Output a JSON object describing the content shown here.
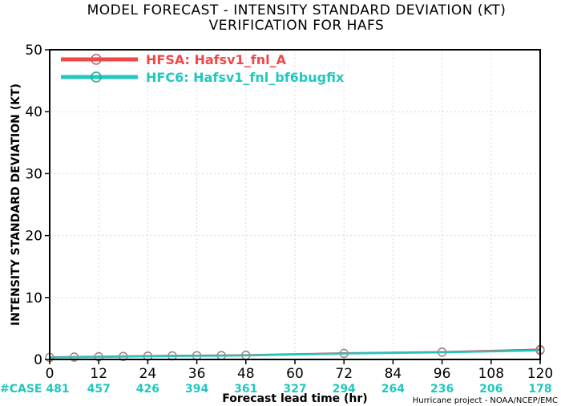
{
  "chart_data": {
    "type": "line",
    "title_line1": "MODEL FORECAST - INTENSITY STANDARD DEVIATION (KT)",
    "title_line2": "VERIFICATION FOR HAFS",
    "xlabel": "Forecast lead time (hr)",
    "ylabel": "INTENSITY STANDARD DEVIATION (KT)",
    "xlim": [
      0,
      120
    ],
    "ylim": [
      0,
      50
    ],
    "x_ticks": [
      0,
      12,
      24,
      36,
      48,
      60,
      72,
      84,
      96,
      108,
      120
    ],
    "y_ticks": [
      0,
      10,
      20,
      30,
      40,
      50
    ],
    "grid": true,
    "legend_position": "top-left",
    "series": [
      {
        "name": "HFSA: Hafsv1_fnl_A",
        "color": "#f04848",
        "x": [
          0,
          6,
          12,
          18,
          24,
          30,
          36,
          42,
          48,
          72,
          96,
          120
        ],
        "y": [
          0.35,
          0.4,
          0.45,
          0.5,
          0.55,
          0.6,
          0.62,
          0.65,
          0.7,
          1.0,
          1.2,
          1.6
        ]
      },
      {
        "name": "HFC6: Hafsv1_fnl_bf6bugfix",
        "color": "#20c8c0",
        "x": [
          0,
          6,
          12,
          18,
          24,
          30,
          36,
          42,
          48,
          72,
          96,
          120
        ],
        "y": [
          0.3,
          0.35,
          0.4,
          0.45,
          0.5,
          0.55,
          0.58,
          0.6,
          0.65,
          0.95,
          1.15,
          1.45
        ]
      }
    ],
    "case_label": "#CASE",
    "case_counts": [
      {
        "x": 0,
        "n": "481"
      },
      {
        "x": 12,
        "n": "457"
      },
      {
        "x": 24,
        "n": "426"
      },
      {
        "x": 36,
        "n": "394"
      },
      {
        "x": 48,
        "n": "361"
      },
      {
        "x": 60,
        "n": "327"
      },
      {
        "x": 72,
        "n": "294"
      },
      {
        "x": 84,
        "n": "264"
      },
      {
        "x": 96,
        "n": "236"
      },
      {
        "x": 108,
        "n": "206"
      },
      {
        "x": 120,
        "n": "178"
      }
    ],
    "case_color": "#20c8c0"
  },
  "credit": "Hurricane project - NOAA/NCEP/EMC"
}
